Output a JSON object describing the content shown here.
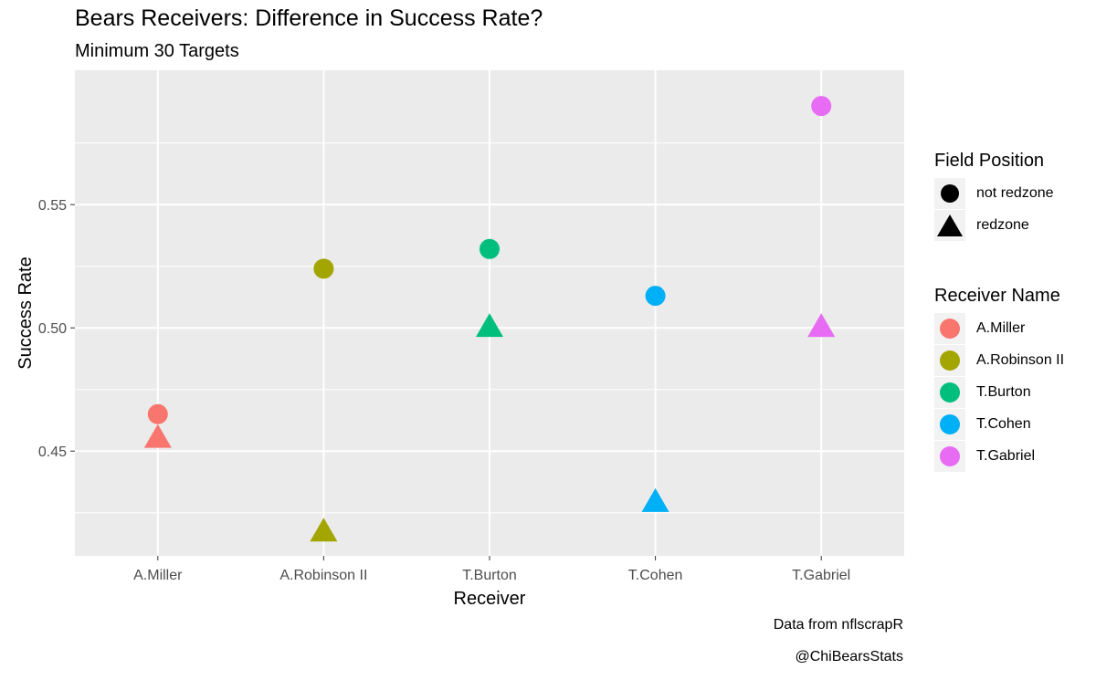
{
  "colors": {
    "panel_bg": "#ebebeb",
    "grid": "#ffffff",
    "tick": "#4d4d4d",
    "text": "#000000"
  },
  "caption": {
    "line1": "Data from nflscrapR",
    "line2": "@ChiBearsStats"
  },
  "legend": {
    "shape_title": "Field Position",
    "shape_items": [
      {
        "label": "not redzone",
        "shape": "circle"
      },
      {
        "label": "redzone",
        "shape": "triangle"
      }
    ],
    "color_title": "Receiver Name",
    "color_items": [
      {
        "label": "A.Miller",
        "color": "#f8766d"
      },
      {
        "label": "A.Robinson II",
        "color": "#a3a500"
      },
      {
        "label": "T.Burton",
        "color": "#00bf7d"
      },
      {
        "label": "T.Cohen",
        "color": "#00b0f6"
      },
      {
        "label": "T.Gabriel",
        "color": "#e76bf3"
      }
    ]
  },
  "chart_data": {
    "type": "scatter",
    "title": "Bears Receivers: Difference in Success Rate?",
    "subtitle": "Minimum 30 Targets",
    "xlabel": "Receiver",
    "ylabel": "Success Rate",
    "categories": [
      "A.Miller",
      "A.Robinson II",
      "T.Burton",
      "T.Cohen",
      "T.Gabriel"
    ],
    "ylim": [
      0.4075,
      0.6045
    ],
    "yticks": [
      0.45,
      0.5,
      0.55
    ],
    "ytick_labels": [
      "0.45",
      "0.50",
      "0.55"
    ],
    "series": [
      {
        "name": "not redzone",
        "shape": "circle",
        "values": [
          0.465,
          0.524,
          0.532,
          0.513,
          0.59
        ]
      },
      {
        "name": "redzone",
        "shape": "triangle",
        "values": [
          0.455,
          0.417,
          0.5,
          0.429,
          0.5
        ]
      }
    ],
    "point_colors": [
      "#f8766d",
      "#a3a500",
      "#00bf7d",
      "#00b0f6",
      "#e76bf3"
    ]
  }
}
